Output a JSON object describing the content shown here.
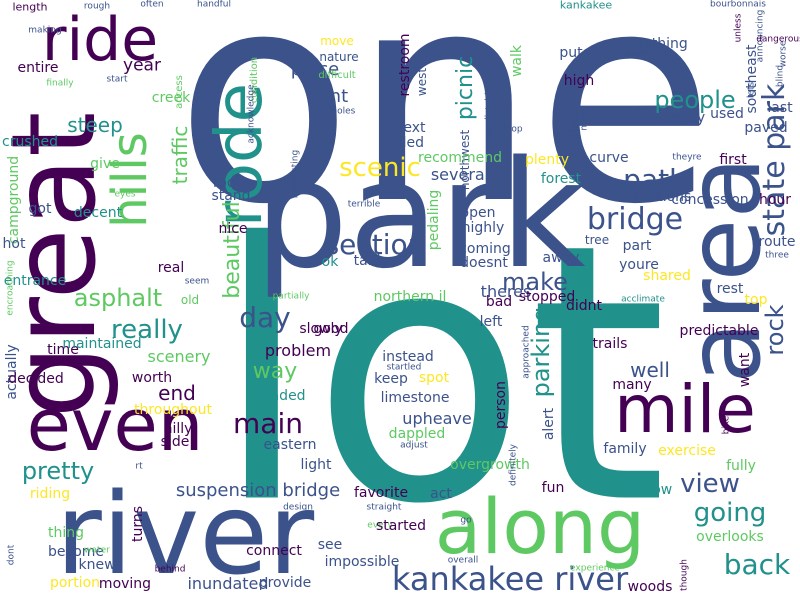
{
  "palette": [
    "#440154",
    "#3b528b",
    "#21918c",
    "#5ec962",
    "#fde725"
  ],
  "words": [
    {
      "text": "one",
      "color": "#3b528b"
    },
    {
      "text": "lot",
      "color": "#21918c"
    },
    {
      "text": "park",
      "color": "#3b528b"
    },
    {
      "text": "great",
      "color": "#440154"
    },
    {
      "text": "river",
      "color": "#3b528b"
    },
    {
      "text": "along",
      "color": "#5ec962"
    },
    {
      "text": "area",
      "color": "#3b528b"
    },
    {
      "text": "mile",
      "color": "#440154"
    },
    {
      "text": "even",
      "color": "#440154"
    },
    {
      "text": "ride",
      "color": "#440154"
    },
    {
      "text": "rode",
      "color": "#21918c"
    },
    {
      "text": "hills",
      "color": "#5ec962"
    },
    {
      "text": "kankakee river",
      "color": "#3b528b"
    },
    {
      "text": "state park",
      "color": "#3b528b"
    },
    {
      "text": "section",
      "color": "#3b528b"
    },
    {
      "text": "bridge",
      "color": "#3b528b"
    },
    {
      "text": "path",
      "color": "#3b528b"
    },
    {
      "text": "scenic",
      "color": "#fde725"
    },
    {
      "text": "back",
      "color": "#21918c"
    },
    {
      "text": "view",
      "color": "#3b528b"
    },
    {
      "text": "going",
      "color": "#21918c"
    },
    {
      "text": "really",
      "color": "#21918c"
    },
    {
      "text": "day",
      "color": "#3b528b"
    },
    {
      "text": "main",
      "color": "#440154"
    },
    {
      "text": "make",
      "color": "#3b528b"
    },
    {
      "text": "parking",
      "color": "#21918c"
    },
    {
      "text": "people",
      "color": "#21918c"
    },
    {
      "text": "rock",
      "color": "#3b528b"
    },
    {
      "text": "pretty",
      "color": "#21918c"
    },
    {
      "text": "asphalt",
      "color": "#5ec962"
    },
    {
      "text": "beautiful",
      "color": "#5ec962"
    },
    {
      "text": "picnic",
      "color": "#21918c"
    },
    {
      "text": "traffic",
      "color": "#5ec962"
    },
    {
      "text": "suspension bridge",
      "color": "#3b528b"
    },
    {
      "text": "way",
      "color": "#5ec962"
    },
    {
      "text": "well",
      "color": "#3b528b"
    },
    {
      "text": "end",
      "color": "#440154"
    },
    {
      "text": "place",
      "color": "#3b528b"
    },
    {
      "text": "right",
      "color": "#3b528b"
    },
    {
      "text": "year",
      "color": "#440154"
    },
    {
      "text": "entire",
      "color": "#440154"
    },
    {
      "text": "length",
      "color": "#440154"
    },
    {
      "text": "rough",
      "color": "#3b528b"
    },
    {
      "text": "often",
      "color": "#3b528b"
    },
    {
      "text": "handful",
      "color": "#3b528b"
    },
    {
      "text": "kankakee",
      "color": "#21918c"
    },
    {
      "text": "bourbonnais",
      "color": "#3b528b"
    },
    {
      "text": "unless",
      "color": "#440154"
    },
    {
      "text": "announcing",
      "color": "#3b528b"
    },
    {
      "text": "making",
      "color": "#3b528b"
    },
    {
      "text": "finally",
      "color": "#5ec962"
    },
    {
      "text": "access",
      "color": "#5ec962"
    },
    {
      "text": "condition",
      "color": "#5ec962"
    },
    {
      "text": "move",
      "color": "#fde725"
    },
    {
      "text": "nature",
      "color": "#3b528b"
    },
    {
      "text": "difficult",
      "color": "#5ec962"
    },
    {
      "text": "potholes",
      "color": "#3b528b"
    },
    {
      "text": "acknowledge",
      "color": "#3b528b"
    },
    {
      "text": "restroom",
      "color": "#440154"
    },
    {
      "text": "west",
      "color": "#3b528b"
    },
    {
      "text": "walk",
      "color": "#5ec962"
    },
    {
      "text": "northwest",
      "color": "#3b528b"
    },
    {
      "text": "unpredictable",
      "color": "#3b528b"
    },
    {
      "text": "put",
      "color": "#3b528b"
    },
    {
      "text": "nothing",
      "color": "#3b528b"
    },
    {
      "text": "seemingly",
      "color": "#3b528b"
    },
    {
      "text": "southeast",
      "color": "#3b528b"
    },
    {
      "text": "high",
      "color": "#440154"
    },
    {
      "text": "fine",
      "color": "#3b528b"
    },
    {
      "text": "much",
      "color": "#3b528b"
    },
    {
      "text": "enjoy",
      "color": "#3b528b"
    },
    {
      "text": "used",
      "color": "#3b528b"
    },
    {
      "text": "last",
      "color": "#3b528b"
    },
    {
      "text": "paved",
      "color": "#3b528b"
    },
    {
      "text": "lets",
      "color": "#3b528b"
    },
    {
      "text": "blind",
      "color": "#3b528b"
    },
    {
      "text": "worse",
      "color": "#3b528b"
    },
    {
      "text": "dangerous",
      "color": "#440154"
    },
    {
      "text": "start",
      "color": "#3b528b"
    },
    {
      "text": "creek",
      "color": "#5ec962"
    },
    {
      "text": "steep",
      "color": "#21918c"
    },
    {
      "text": "crushed",
      "color": "#21918c"
    },
    {
      "text": "give",
      "color": "#5ec962"
    },
    {
      "text": "eyes",
      "color": "#5ec962"
    },
    {
      "text": "got",
      "color": "#3b528b"
    },
    {
      "text": "decent",
      "color": "#21918c"
    },
    {
      "text": "campground",
      "color": "#5ec962"
    },
    {
      "text": "hot",
      "color": "#3b528b"
    },
    {
      "text": "root",
      "color": "#3b528b"
    },
    {
      "text": "stand",
      "color": "#3b528b"
    },
    {
      "text": "nice",
      "color": "#440154"
    },
    {
      "text": "next",
      "color": "#3b528b"
    },
    {
      "text": "filled",
      "color": "#3b528b"
    },
    {
      "text": "recommend",
      "color": "#5ec962"
    },
    {
      "text": "several",
      "color": "#3b528b"
    },
    {
      "text": "plenty",
      "color": "#fde725"
    },
    {
      "text": "forest",
      "color": "#21918c"
    },
    {
      "text": "curve",
      "color": "#3b528b"
    },
    {
      "text": "first",
      "color": "#440154"
    },
    {
      "text": "theyre",
      "color": "#3b528b"
    },
    {
      "text": "concession",
      "color": "#3b528b"
    },
    {
      "text": "directions",
      "color": "#3b528b"
    },
    {
      "text": "hour",
      "color": "#440154"
    },
    {
      "text": "loop",
      "color": "#3b528b"
    },
    {
      "text": "open",
      "color": "#3b528b"
    },
    {
      "text": "highly",
      "color": "#3b528b"
    },
    {
      "text": "interesting",
      "color": "#3b528b"
    },
    {
      "text": "terrible",
      "color": "#3b528b"
    },
    {
      "text": "pedaling",
      "color": "#5ec962"
    },
    {
      "text": "coming",
      "color": "#3b528b"
    },
    {
      "text": "doesnt",
      "color": "#3b528b"
    },
    {
      "text": "tree",
      "color": "#3b528b"
    },
    {
      "text": "part",
      "color": "#3b528b"
    },
    {
      "text": "route",
      "color": "#3b528b"
    },
    {
      "text": "three",
      "color": "#3b528b"
    },
    {
      "text": "away",
      "color": "#3b528b"
    },
    {
      "text": "youre",
      "color": "#3b528b"
    },
    {
      "text": "ok",
      "color": "#21918c"
    },
    {
      "text": "tables",
      "color": "#3b528b"
    },
    {
      "text": "entrance",
      "color": "#21918c"
    },
    {
      "text": "encroaching",
      "color": "#5ec962"
    },
    {
      "text": "real",
      "color": "#440154"
    },
    {
      "text": "seem",
      "color": "#3b528b"
    },
    {
      "text": "partially",
      "color": "#5ec962"
    },
    {
      "text": "theres",
      "color": "#3b528b"
    },
    {
      "text": "rest",
      "color": "#3b528b"
    },
    {
      "text": "shared",
      "color": "#fde725"
    },
    {
      "text": "acclimate",
      "color": "#21918c"
    },
    {
      "text": "top",
      "color": "#fde725"
    },
    {
      "text": "northern il",
      "color": "#5ec962"
    },
    {
      "text": "stopped",
      "color": "#440154"
    },
    {
      "text": "bad",
      "color": "#440154"
    },
    {
      "text": "didnt",
      "color": "#440154"
    },
    {
      "text": "old",
      "color": "#5ec962"
    },
    {
      "text": "good",
      "color": "#440154"
    },
    {
      "text": "slowly",
      "color": "#440154"
    },
    {
      "text": "left",
      "color": "#3b528b"
    },
    {
      "text": "approached",
      "color": "#3b528b"
    },
    {
      "text": "predictable",
      "color": "#440154"
    },
    {
      "text": "trails",
      "color": "#440154"
    },
    {
      "text": "want",
      "color": "#440154"
    },
    {
      "text": "time",
      "color": "#440154"
    },
    {
      "text": "maintained",
      "color": "#21918c"
    },
    {
      "text": "actually",
      "color": "#3b528b"
    },
    {
      "text": "problem",
      "color": "#440154"
    },
    {
      "text": "instead",
      "color": "#3b528b"
    },
    {
      "text": "startled",
      "color": "#3b528b"
    },
    {
      "text": "keep",
      "color": "#3b528b"
    },
    {
      "text": "spot",
      "color": "#fde725"
    },
    {
      "text": "many",
      "color": "#440154"
    },
    {
      "text": "scenery",
      "color": "#5ec962"
    },
    {
      "text": "decided",
      "color": "#440154"
    },
    {
      "text": "worth",
      "color": "#440154"
    },
    {
      "text": "throughout",
      "color": "#fde725"
    },
    {
      "text": "shaded",
      "color": "#21918c"
    },
    {
      "text": "limestone",
      "color": "#3b528b"
    },
    {
      "text": "person",
      "color": "#440154"
    },
    {
      "text": "hilly",
      "color": "#440154"
    },
    {
      "text": "side",
      "color": "#440154"
    },
    {
      "text": "upheave",
      "color": "#3b528b"
    },
    {
      "text": "dappled",
      "color": "#5ec962"
    },
    {
      "text": "adjust",
      "color": "#3b528b"
    },
    {
      "text": "bike",
      "color": "#440154"
    },
    {
      "text": "eastern",
      "color": "#3b528b"
    },
    {
      "text": "family",
      "color": "#3b528b"
    },
    {
      "text": "exercise",
      "color": "#fde725"
    },
    {
      "text": "fully",
      "color": "#5ec962"
    },
    {
      "text": "light",
      "color": "#3b528b"
    },
    {
      "text": "rt",
      "color": "#3b528b"
    },
    {
      "text": "overgrowth",
      "color": "#5ec962"
    },
    {
      "text": "definitely",
      "color": "#3b528b"
    },
    {
      "text": "alert",
      "color": "#3b528b"
    },
    {
      "text": "narrow",
      "color": "#21918c"
    },
    {
      "text": "riding",
      "color": "#fde725"
    },
    {
      "text": "fun",
      "color": "#440154"
    },
    {
      "text": "favorite",
      "color": "#440154"
    },
    {
      "text": "act",
      "color": "#3b528b"
    },
    {
      "text": "design",
      "color": "#3b528b"
    },
    {
      "text": "straight",
      "color": "#3b528b"
    },
    {
      "text": "every",
      "color": "#5ec962"
    },
    {
      "text": "go",
      "color": "#3b528b"
    },
    {
      "text": "started",
      "color": "#440154"
    },
    {
      "text": "overlooks",
      "color": "#5ec962"
    },
    {
      "text": "turns",
      "color": "#440154"
    },
    {
      "text": "thing",
      "color": "#5ec962"
    },
    {
      "text": "see",
      "color": "#3b528b"
    },
    {
      "text": "connect",
      "color": "#440154"
    },
    {
      "text": "become",
      "color": "#3b528b"
    },
    {
      "text": "impossible",
      "color": "#3b528b"
    },
    {
      "text": "dont",
      "color": "#3b528b"
    },
    {
      "text": "water",
      "color": "#5ec962"
    },
    {
      "text": "knew",
      "color": "#3b528b"
    },
    {
      "text": "behind",
      "color": "#440154"
    },
    {
      "text": "moving",
      "color": "#440154"
    },
    {
      "text": "inundated",
      "color": "#3b528b"
    },
    {
      "text": "overall",
      "color": "#3b528b"
    },
    {
      "text": "experience",
      "color": "#5ec962"
    },
    {
      "text": "though",
      "color": "#440154"
    },
    {
      "text": "portion",
      "color": "#fde725"
    },
    {
      "text": "provide",
      "color": "#3b528b"
    },
    {
      "text": "woods",
      "color": "#440154"
    }
  ]
}
